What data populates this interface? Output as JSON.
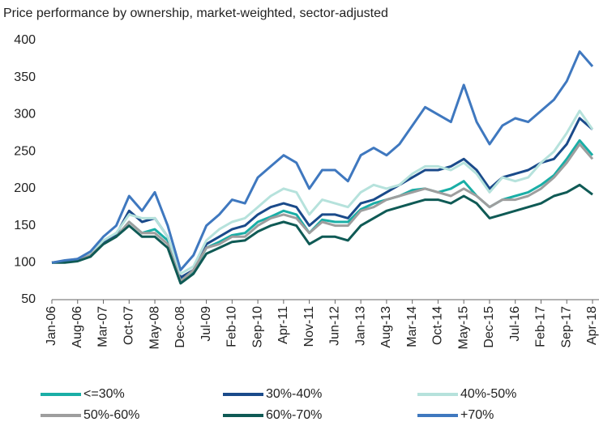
{
  "chart_data": {
    "type": "line",
    "title": "Price performance by ownership, market-weighted, sector-adjusted",
    "categories": [
      "Jan-06",
      null,
      "Aug-06",
      null,
      "Mar-07",
      null,
      "Oct-07",
      null,
      "May-08",
      null,
      "Dec-08",
      null,
      "Jul-09",
      null,
      "Feb-10",
      null,
      "Sep-10",
      null,
      "Apr-11",
      null,
      "Nov-11",
      null,
      "Jun-12",
      null,
      "Jan-13",
      null,
      "Aug-13",
      null,
      "Mar-14",
      null,
      "Oct-14",
      null,
      "May-15",
      null,
      "Dec-15",
      null,
      "Jul-16",
      null,
      "Feb-17",
      null,
      "Sep-17",
      null,
      "Apr-18"
    ],
    "ylim": [
      50,
      400
    ],
    "yticks": [
      50,
      100,
      150,
      200,
      250,
      300,
      350,
      400
    ],
    "grid": false,
    "series": [
      {
        "name": "<=30%",
        "color": "#1aaea6",
        "values": [
          100,
          101,
          104,
          110,
          127,
          135,
          155,
          140,
          145,
          130,
          78,
          88,
          120,
          128,
          137,
          140,
          155,
          162,
          170,
          165,
          140,
          158,
          155,
          155,
          172,
          180,
          185,
          190,
          198,
          200,
          195,
          200,
          210,
          190,
          175,
          185,
          190,
          195,
          205,
          218,
          240,
          265,
          245
        ]
      },
      {
        "name": "30%-40%",
        "color": "#1a4a8a",
        "values": [
          100,
          102,
          105,
          112,
          128,
          138,
          170,
          155,
          160,
          135,
          80,
          90,
          125,
          135,
          145,
          150,
          165,
          175,
          180,
          175,
          150,
          165,
          165,
          160,
          180,
          185,
          195,
          205,
          215,
          225,
          225,
          230,
          240,
          225,
          200,
          215,
          220,
          225,
          235,
          240,
          260,
          295,
          280
        ]
      },
      {
        "name": "40%-50%",
        "color": "#b6e2dc",
        "values": [
          100,
          102,
          105,
          112,
          130,
          140,
          165,
          160,
          160,
          135,
          85,
          95,
          130,
          145,
          155,
          160,
          175,
          190,
          200,
          195,
          165,
          185,
          180,
          175,
          195,
          205,
          200,
          205,
          220,
          230,
          230,
          225,
          235,
          220,
          195,
          215,
          210,
          215,
          235,
          250,
          275,
          305,
          280
        ]
      },
      {
        "name": "50%-60%",
        "color": "#9e9e9e",
        "values": [
          100,
          101,
          103,
          110,
          125,
          135,
          155,
          140,
          140,
          125,
          75,
          90,
          120,
          125,
          135,
          135,
          150,
          160,
          165,
          160,
          140,
          155,
          150,
          150,
          170,
          175,
          185,
          190,
          195,
          200,
          195,
          190,
          200,
          190,
          175,
          185,
          185,
          190,
          200,
          215,
          235,
          260,
          240
        ]
      },
      {
        "name": "60%-70%",
        "color": "#0f5a55",
        "values": [
          100,
          100,
          102,
          108,
          125,
          135,
          150,
          135,
          135,
          120,
          72,
          85,
          112,
          120,
          128,
          130,
          142,
          150,
          155,
          150,
          125,
          135,
          135,
          130,
          150,
          160,
          170,
          175,
          180,
          185,
          185,
          180,
          190,
          180,
          160,
          165,
          170,
          175,
          180,
          190,
          195,
          205,
          192
        ]
      },
      {
        "name": "+70%",
        "color": "#3f78bf",
        "values": [
          100,
          103,
          105,
          115,
          135,
          150,
          190,
          170,
          195,
          150,
          90,
          110,
          150,
          165,
          185,
          180,
          215,
          230,
          245,
          235,
          200,
          225,
          225,
          210,
          245,
          255,
          245,
          260,
          285,
          310,
          300,
          290,
          340,
          290,
          260,
          285,
          295,
          290,
          305,
          320,
          345,
          385,
          365
        ]
      }
    ]
  }
}
